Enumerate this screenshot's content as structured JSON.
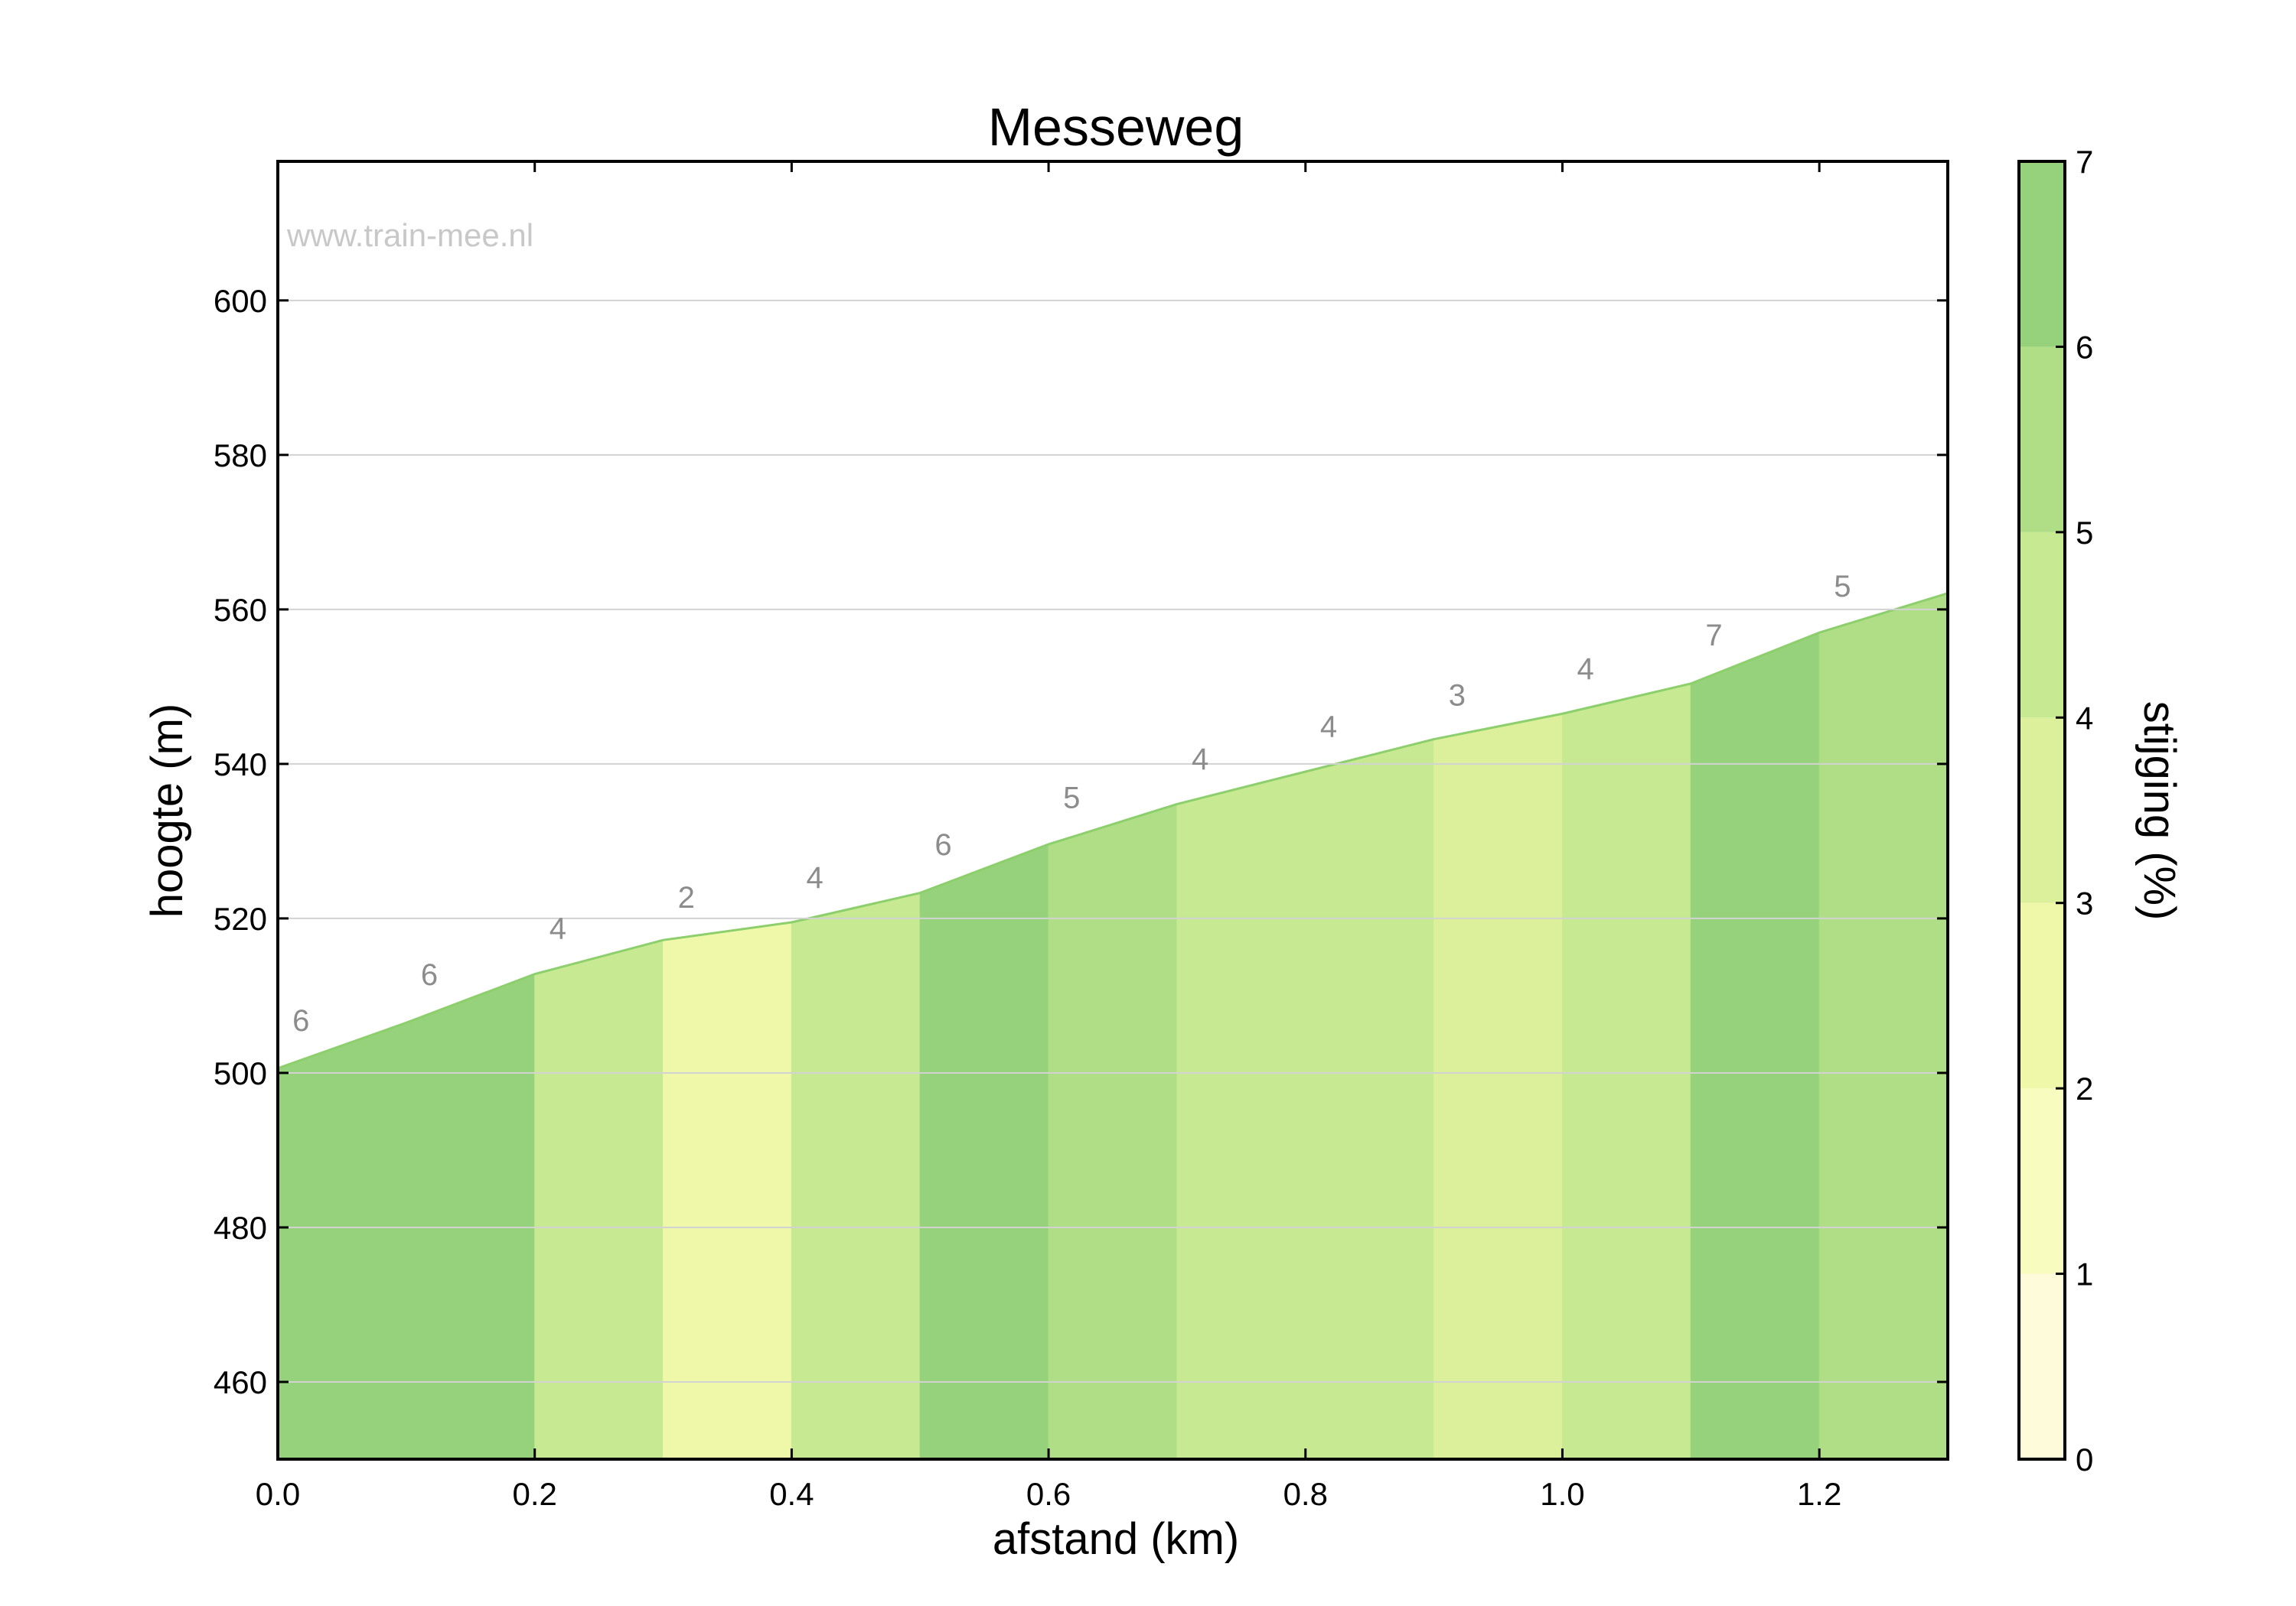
{
  "chart_data": {
    "type": "area",
    "title": "Messeweg",
    "watermark": "www.train-mee.nl",
    "xlabel": "afstand (km)",
    "ylabel": "hoogte (m)",
    "xlim": [
      0.0,
      1.3
    ],
    "ylim": [
      450,
      618
    ],
    "grid": "horizontal",
    "x_ticks": [
      0.0,
      0.2,
      0.4,
      0.6,
      0.8,
      1.0,
      1.2
    ],
    "x_tick_labels": [
      "0.0",
      "0.2",
      "0.4",
      "0.6",
      "0.8",
      "1.0",
      "1.2"
    ],
    "y_ticks": [
      460,
      480,
      500,
      520,
      540,
      560,
      580,
      600
    ],
    "y_tick_labels": [
      "460",
      "480",
      "500",
      "520",
      "540",
      "560",
      "580",
      "600"
    ],
    "profile": {
      "x": [
        0.0,
        0.1,
        0.2,
        0.3,
        0.4,
        0.5,
        0.6,
        0.7,
        0.8,
        0.9,
        1.0,
        1.1,
        1.2,
        1.3
      ],
      "y": [
        500.6,
        506.5,
        512.8,
        517.2,
        519.5,
        523.3,
        529.6,
        534.8,
        539.0,
        543.2,
        546.5,
        550.4,
        557.0,
        562.1
      ]
    },
    "segments": [
      {
        "x0": 0.0,
        "x1": 0.1,
        "grade": 6,
        "label": "6"
      },
      {
        "x0": 0.1,
        "x1": 0.2,
        "grade": 6,
        "label": "6"
      },
      {
        "x0": 0.2,
        "x1": 0.3,
        "grade": 4,
        "label": "4"
      },
      {
        "x0": 0.3,
        "x1": 0.4,
        "grade": 2,
        "label": "2"
      },
      {
        "x0": 0.4,
        "x1": 0.5,
        "grade": 4,
        "label": "4"
      },
      {
        "x0": 0.5,
        "x1": 0.6,
        "grade": 6,
        "label": "6"
      },
      {
        "x0": 0.6,
        "x1": 0.7,
        "grade": 5,
        "label": "5"
      },
      {
        "x0": 0.7,
        "x1": 0.8,
        "grade": 4,
        "label": "4"
      },
      {
        "x0": 0.8,
        "x1": 0.9,
        "grade": 4,
        "label": "4"
      },
      {
        "x0": 0.9,
        "x1": 1.0,
        "grade": 3,
        "label": "3"
      },
      {
        "x0": 1.0,
        "x1": 1.1,
        "grade": 4,
        "label": "4"
      },
      {
        "x0": 1.1,
        "x1": 1.2,
        "grade": 7,
        "label": "7"
      },
      {
        "x0": 1.2,
        "x1": 1.3,
        "grade": 5,
        "label": "5"
      }
    ],
    "segment_colors": {
      "2": "#eff8a8",
      "3": "#dcf09c",
      "4": "#c6e992",
      "5": "#afde86",
      "6": "#96d27c",
      "7": "#96d27c"
    },
    "profile_line_color": "#8ccf6c",
    "colorbar": {
      "label": "stijging (%)",
      "range": [
        0,
        7
      ],
      "ticks": [
        0,
        1,
        2,
        3,
        4,
        5,
        6,
        7
      ],
      "tick_labels": [
        "0",
        "1",
        "2",
        "3",
        "4",
        "5",
        "6",
        "7"
      ],
      "bands": [
        {
          "from": 0,
          "to": 1,
          "color": "#fefbda"
        },
        {
          "from": 1,
          "to": 2,
          "color": "#f8fcbf"
        },
        {
          "from": 2,
          "to": 3,
          "color": "#eff8a8"
        },
        {
          "from": 3,
          "to": 4,
          "color": "#dcf09c"
        },
        {
          "from": 4,
          "to": 5,
          "color": "#c6e992"
        },
        {
          "from": 5,
          "to": 6,
          "color": "#afde86"
        },
        {
          "from": 6,
          "to": 7,
          "color": "#96d27c"
        }
      ]
    }
  }
}
